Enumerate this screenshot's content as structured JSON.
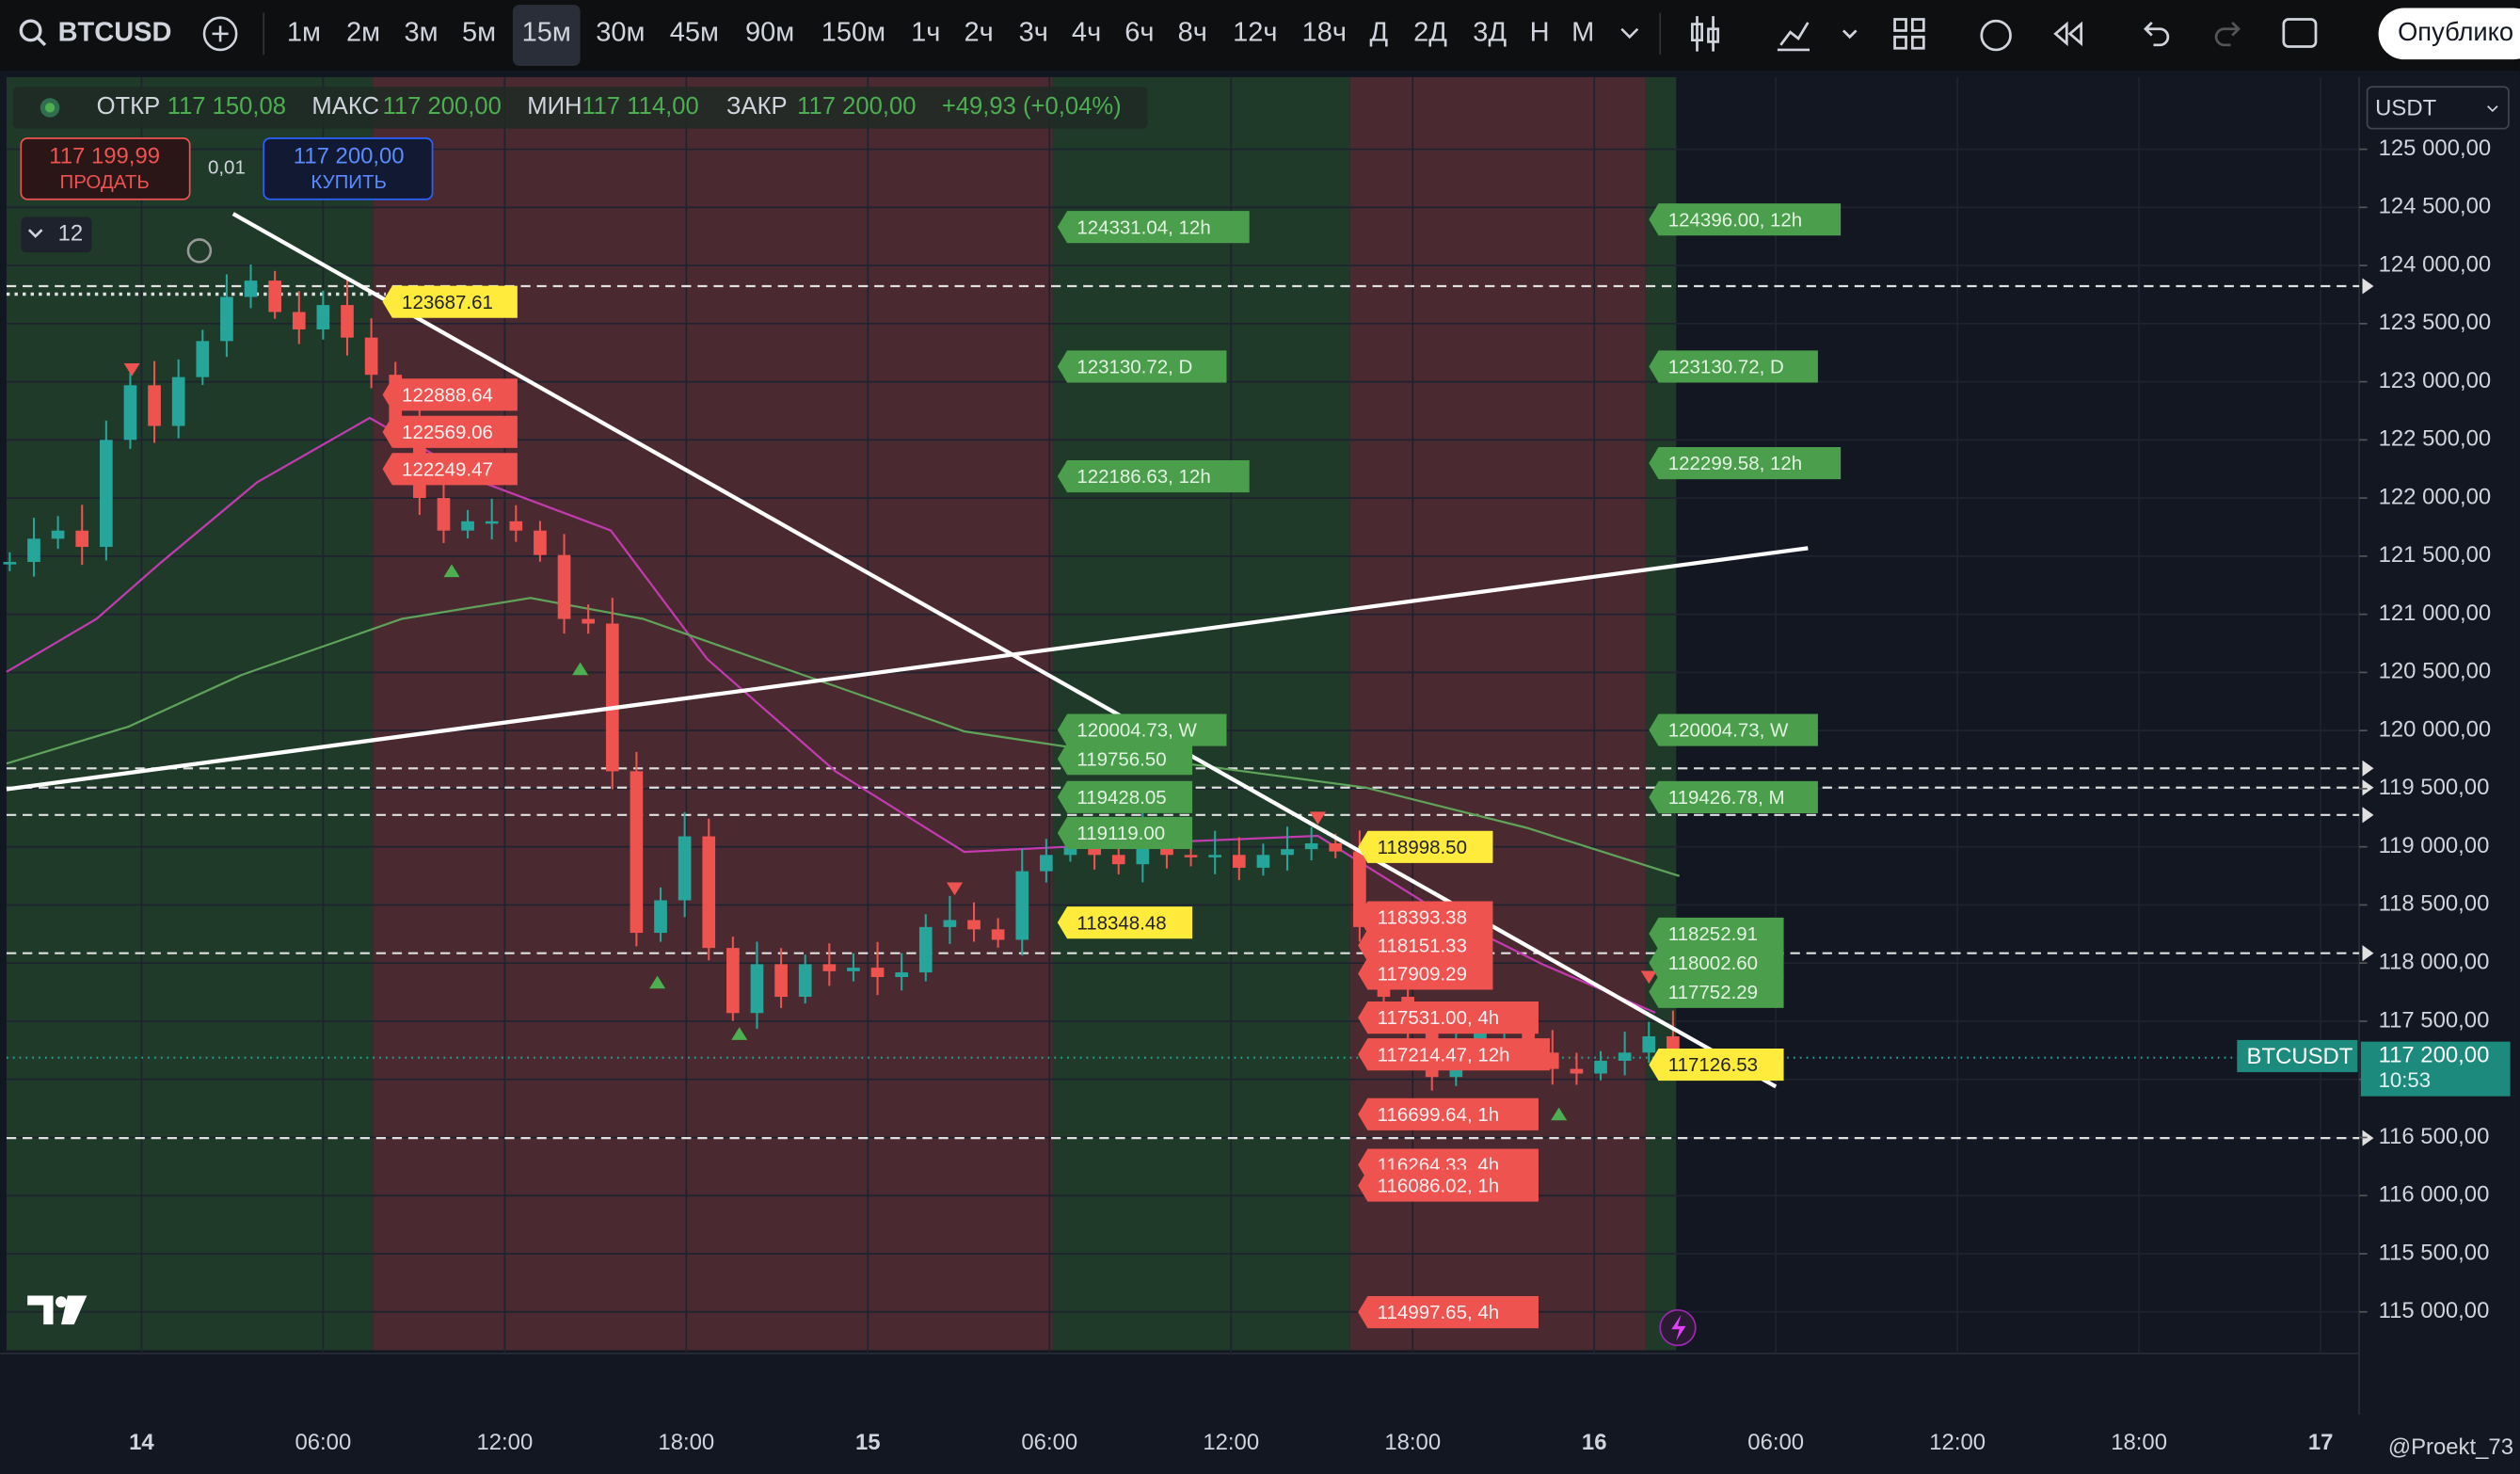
{
  "toolbar": {
    "symbol": "BTCUSD",
    "intervals": [
      "1м",
      "2м",
      "3м",
      "5м",
      "15м",
      "30м",
      "45м",
      "90м",
      "150м",
      "1ч",
      "2ч",
      "3ч",
      "4ч",
      "6ч",
      "8ч",
      "12ч",
      "18ч",
      "Д",
      "2Д",
      "3Д",
      "Н",
      "М"
    ],
    "active_interval_index": 4,
    "publish": "Опублико"
  },
  "legend": {
    "fields": [
      {
        "label": "ОТКР",
        "value": "117 150,08"
      },
      {
        "label": "МАКС",
        "value": "117 200,00"
      },
      {
        "label": "МИН",
        "value": "117 114,00"
      },
      {
        "label": "ЗАКР",
        "value": "117 200,00"
      }
    ],
    "change": "+49,93 (+0,04%)"
  },
  "trade": {
    "sell_price": "117 199,99",
    "sell": "ПРОДАТЬ",
    "spread": "0,01",
    "buy_price": "117 200,00",
    "buy": "КУПИТЬ"
  },
  "indicators": 12,
  "currency": "USDT",
  "watermark": "@Proekt_73",
  "chart_data": {
    "type": "candlestick",
    "ylim": [
      114670,
      125620
    ],
    "yticks": [
      {
        "value": 125000,
        "label": "125 000,00"
      },
      {
        "value": 124500,
        "label": "124 500,00"
      },
      {
        "value": 124000,
        "label": "124 000,00"
      },
      {
        "value": 123500,
        "label": "123 500,00"
      },
      {
        "value": 123000,
        "label": "123 000,00"
      },
      {
        "value": 122500,
        "label": "122 500,00"
      },
      {
        "value": 122000,
        "label": "122 000,00"
      },
      {
        "value": 121500,
        "label": "121 500,00"
      },
      {
        "value": 121000,
        "label": "121 000,00"
      },
      {
        "value": 120500,
        "label": "120 500,00"
      },
      {
        "value": 120000,
        "label": "120 000,00"
      },
      {
        "value": 119500,
        "label": "119 500,00"
      },
      {
        "value": 119000,
        "label": "119 000,00"
      },
      {
        "value": 118500,
        "label": "118 500,00"
      },
      {
        "value": 118000,
        "label": "118 000,00"
      },
      {
        "value": 117500,
        "label": "117 500,00"
      },
      {
        "value": 117000,
        "label": "117 000,00"
      },
      {
        "value": 116500,
        "label": "116 500,00"
      },
      {
        "value": 116000,
        "label": "116 000,00"
      },
      {
        "value": 115500,
        "label": "115 500,00"
      },
      {
        "value": 115000,
        "label": "115 000,00"
      }
    ],
    "categories": [
      "14",
      "06:00",
      "12:00",
      "18:00",
      "15",
      "06:00",
      "12:00",
      "18:00",
      "16",
      "06:00",
      "12:00",
      "18:00",
      "17"
    ],
    "closes": [
      121450,
      121650,
      121720,
      121580,
      122500,
      122970,
      122620,
      123040,
      123350,
      123730,
      123870,
      123600,
      123450,
      123660,
      123380,
      123060,
      122620,
      122000,
      121720,
      121800,
      121800,
      121720,
      121510,
      120960,
      120920,
      119650,
      118260,
      118540,
      119090,
      118130,
      117570,
      117990,
      117710,
      117990,
      117930,
      117960,
      117880,
      117920,
      118310,
      118370,
      118290,
      118200,
      118790,
      118930,
      119000,
      118930,
      118850,
      119090,
      118930,
      118910,
      118930,
      118820,
      118930,
      118980,
      119030,
      118960,
      118310,
      117710,
      117430,
      117020,
      117300,
      117430,
      117430,
      117230,
      117090,
      117050,
      117160,
      117230,
      117370,
      117230
    ],
    "colors": {
      "up": "#26a69a",
      "down": "#ef5350"
    },
    "level_groups": [
      [
        {
          "value": 123687.61,
          "label": "123687.61",
          "style": "yellow"
        },
        {
          "value": 122888.64,
          "label": "122888.64",
          "style": "red"
        },
        {
          "value": 122569.06,
          "label": "122569.06",
          "style": "red"
        },
        {
          "value": 122249.47,
          "label": "122249.47",
          "style": "red"
        }
      ],
      [
        {
          "value": 124331.04,
          "label": "124331.04, 12h",
          "style": "green"
        },
        {
          "value": 123130.72,
          "label": "123130.72, D",
          "style": "green"
        },
        {
          "value": 122186.63,
          "label": "122186.63, 12h",
          "style": "green"
        },
        {
          "value": 120004.73,
          "label": "120004.73, W",
          "style": "green"
        },
        {
          "value": 119756.5,
          "label": "119756.50",
          "style": "green"
        },
        {
          "value": 119428.05,
          "label": "119428.05",
          "style": "green"
        },
        {
          "value": 119119.0,
          "label": "119119.00",
          "style": "green"
        },
        {
          "value": 118348.48,
          "label": "118348.48",
          "style": "yellow"
        }
      ],
      [
        {
          "value": 118998.5,
          "label": "118998.50",
          "style": "yellow"
        },
        {
          "value": 118393.38,
          "label": "118393.38",
          "style": "red"
        },
        {
          "value": 118151.33,
          "label": "118151.33",
          "style": "red"
        },
        {
          "value": 117909.29,
          "label": "117909.29",
          "style": "red"
        },
        {
          "value": 117531.0,
          "label": "117531.00, 4h",
          "style": "red"
        },
        {
          "value": 117214.47,
          "label": "117214.47, 12h",
          "style": "red"
        },
        {
          "value": 116699.64,
          "label": "116699.64, 1h",
          "style": "red"
        },
        {
          "value": 116264.33,
          "label": "116264.33, 4h",
          "style": "red"
        },
        {
          "value": 116086.02,
          "label": "116086.02, 1h",
          "style": "red"
        },
        {
          "value": 114997.65,
          "label": "114997.65, 4h",
          "style": "red"
        }
      ],
      [
        {
          "value": 124396.0,
          "label": "124396.00, 12h",
          "style": "green"
        },
        {
          "value": 123130.72,
          "label": "123130.72, D",
          "style": "green"
        },
        {
          "value": 122299.58,
          "label": "122299.58, 12h",
          "style": "green"
        },
        {
          "value": 120004.73,
          "label": "120004.73, W",
          "style": "green"
        },
        {
          "value": 119426.78,
          "label": "119426.78, M",
          "style": "green"
        },
        {
          "value": 118252.91,
          "label": "118252.91",
          "style": "green"
        },
        {
          "value": 118002.6,
          "label": "118002.60",
          "style": "green"
        },
        {
          "value": 117752.29,
          "label": "117752.29",
          "style": "green"
        },
        {
          "value": 117126.53,
          "label": "117126.53",
          "style": "yellow"
        }
      ]
    ],
    "last_price": {
      "symbol": "BTCUSDT",
      "value": 117200,
      "label": "117 200,00",
      "countdown": "10:53"
    }
  }
}
